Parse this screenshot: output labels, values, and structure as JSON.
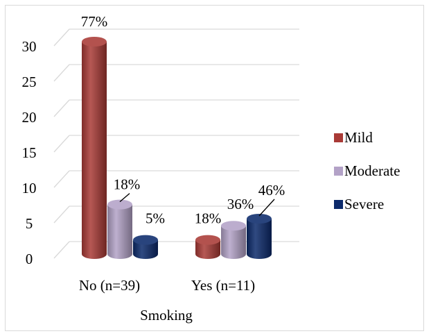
{
  "chart_data": {
    "type": "bar",
    "style": "3d-cylinder",
    "categories": [
      "No (n=39)",
      "Yes (n=11)"
    ],
    "xlabel": "Smoking",
    "ylabel": "",
    "ylim": [
      0,
      30
    ],
    "yticks": [
      0,
      5,
      10,
      15,
      20,
      25,
      30
    ],
    "grid": true,
    "legend_position": "right",
    "series": [
      {
        "name": "Mild",
        "color": "#a93a36",
        "values": [
          30,
          2
        ],
        "labels": [
          "77%",
          "18%"
        ]
      },
      {
        "name": "Moderate",
        "color": "#b3a2c7",
        "values": [
          7,
          4
        ],
        "labels": [
          "18%",
          "36%"
        ]
      },
      {
        "name": "Severe",
        "color": "#0c2a6b",
        "values": [
          2,
          5
        ],
        "labels": [
          "5%",
          "46%"
        ]
      }
    ]
  }
}
